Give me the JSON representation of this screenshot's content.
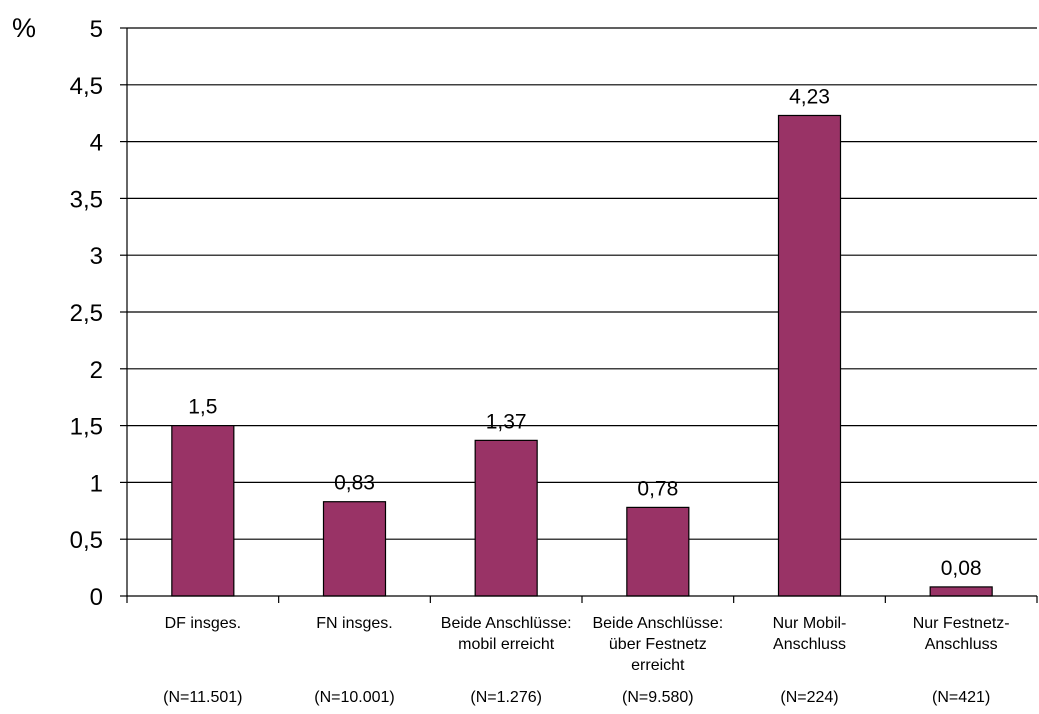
{
  "chart_data": {
    "type": "bar",
    "ylabel": "%",
    "ylim": [
      0,
      5
    ],
    "yticks": [
      0,
      0.5,
      1,
      1.5,
      2,
      2.5,
      3,
      3.5,
      4,
      4.5,
      5
    ],
    "ytick_labels": [
      "0",
      "0,5",
      "1",
      "1,5",
      "2",
      "2,5",
      "3",
      "3,5",
      "4",
      "4,5",
      "5"
    ],
    "grid": true,
    "bar_color": "#993366",
    "categories": [
      [
        "DF insges."
      ],
      [
        "FN insges."
      ],
      [
        "Beide Anschlüsse:",
        "mobil erreicht"
      ],
      [
        "Beide Anschlüsse:",
        "über Festnetz",
        "erreicht"
      ],
      [
        "Nur Mobil-",
        "Anschluss"
      ],
      [
        "Nur Festnetz-",
        "Anschluss"
      ]
    ],
    "sample_sizes": [
      "(N=11.501)",
      "(N=10.001)",
      "(N=1.276)",
      "(N=9.580)",
      "(N=224)",
      "(N=421)"
    ],
    "values": [
      1.5,
      0.83,
      1.37,
      0.78,
      4.23,
      0.08
    ],
    "value_labels": [
      "1,5",
      "0,83",
      "1,37",
      "0,78",
      "4,23",
      "0,08"
    ]
  }
}
